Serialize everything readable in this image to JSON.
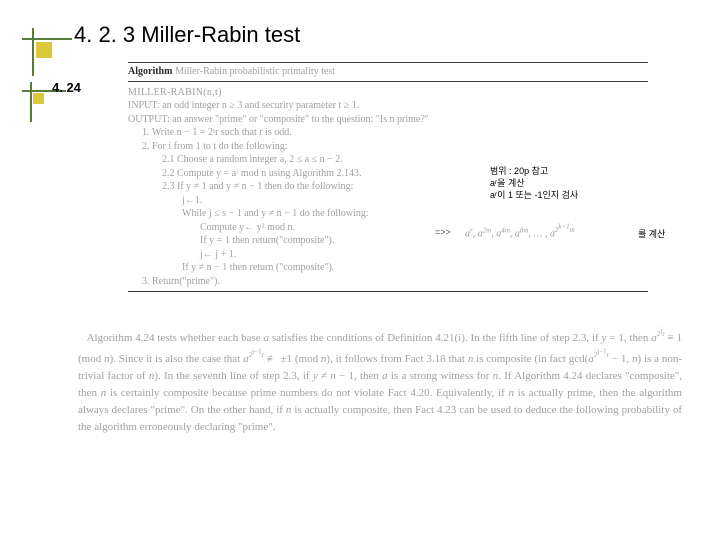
{
  "title": "4. 2. 3 Miller-Rabin test",
  "section_num": "4. 24",
  "algo": {
    "header_bold": "Algorithm",
    "header_rest": " Miller-Rabin probabilistic primality test",
    "fn": "MILLER-RABIN(n,t)",
    "input": "INPUT: an odd integer n ≥ 3 and security parameter t ≥ 1.",
    "output": "OUTPUT: an answer \"prime\" or \"composite\" to the question: \"Is n prime?\"",
    "l1": "1.  Write n − 1 = 2ˢr such that r is odd.",
    "l2": "2.  For i from 1 to t do the following:",
    "l21": "2.1  Choose a random integer a, 2 ≤ a ≤ n − 2.",
    "l22": "2.2  Compute y = aʳ mod n using Algorithm 2.143.",
    "l23": "2.3  If y ≠ 1 and y ≠ n − 1 then do the following:",
    "l23a": "j←1.",
    "l23b": "While j ≤ s − 1 and y ≠ n − 1 do the following:",
    "l23c": "Compute y← y² mod n.",
    "l23d": "If y = 1 then return(\"composite\").",
    "l23e": "j← j + 1.",
    "l23f": "If y ≠ n − 1 then return (\"composite\").",
    "l3": "3.  Return(\"prime\")."
  },
  "annot": {
    "a1": "범위 : 20p 참고",
    "a2": "aʳ을 계산",
    "a3": "aʳ이 1 또는 -1인지 검사",
    "arrow": "=>>",
    "seq_html": "a<sup>r</sup>, a<sup>2m</sup>, a<sup>4m</sup>, a<sup>8m</sup>, … , a<sup>2<sup>k−1</sup>m</sup>",
    "calc": "를 계산"
  },
  "explain_html": "&nbsp;&nbsp;&nbsp;Algorithm 4.24 tests whether each base <i>a</i> satisfies the conditions of Definition 4.21(i). In the fifth line of step 2.3, if <i>y</i> = 1, then <i>a</i><sup>2<sup>j</sup>r</sup> ≡ 1 (mod <i>n</i>). Since it is also the case that <i>a</i><sup>2<sup>j−1</sup>r</sup> ≢ ±1 (mod <i>n</i>), it follows from Fact 3.18 that <i>n</i> is composite (in fact gcd(<i>a</i><sup>2<sup>j−1</sup>r</sup> − 1, <i>n</i>) is a non-trivial factor of <i>n</i>). In the seventh line of step 2.3, if <i>y</i> ≠ <i>n</i> − 1, then <i>a</i> is a strong witness for <i>n</i>. If Algorithm 4.24 declares \"composite\", then <i>n</i> is certainly composite because prime numbers do not violate Fact 4.20. Equivalently, if <i>n</i> is actually prime, then the algorithm always declares \"prime\". On the other hand, if <i>n</i> is actually composite, then Fact 4.23 can be used to deduce the following probability of the algorithm erroneously declaring \"prime\"."
}
